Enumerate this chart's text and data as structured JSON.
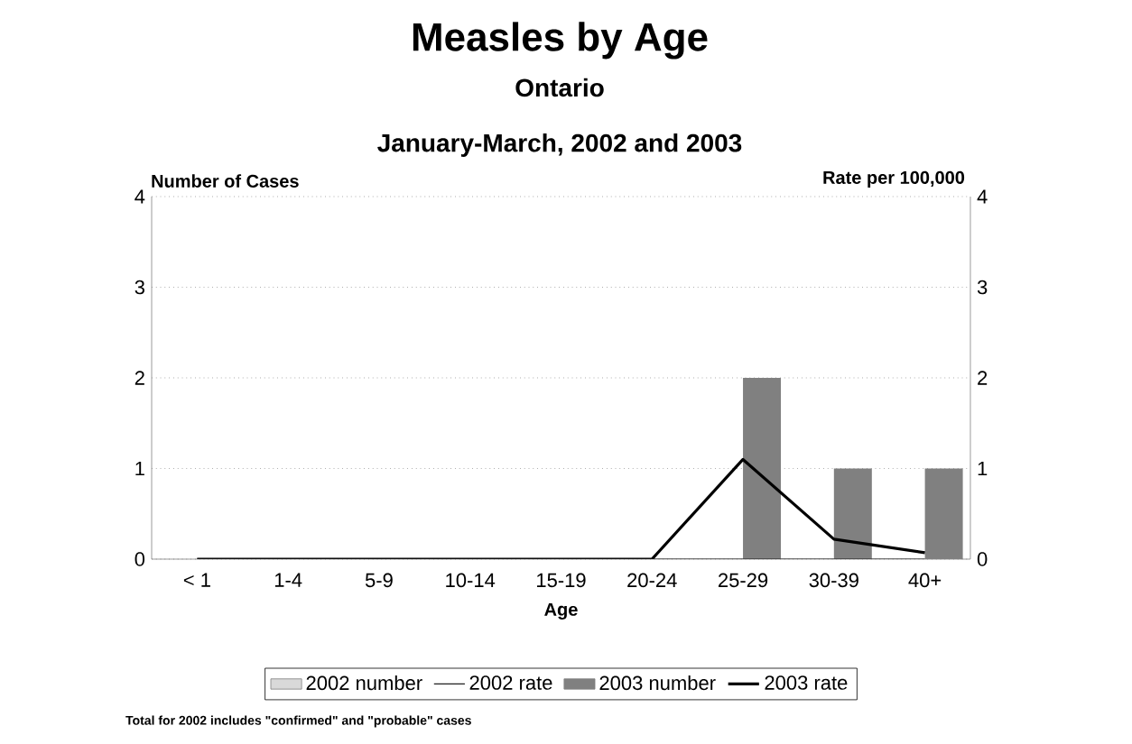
{
  "chart_data": {
    "type": "bar",
    "title": "Measles by Age",
    "subtitle": "Ontario",
    "annotations": [
      "January-March, 2002 and 2003",
      "Total for 2002 includes \"confirmed\" and \"probable\" cases"
    ],
    "xlabel": "Age",
    "ylabel": "Number of Cases",
    "y2label": "Rate per 100,000",
    "categories": [
      "< 1",
      "1-4",
      "5-9",
      "10-14",
      "15-19",
      "20-24",
      "25-29",
      "30-39",
      "40+"
    ],
    "series": [
      {
        "name": "2002 number",
        "color": "#d9d9d9",
        "values": [
          0,
          0,
          0,
          0,
          0,
          0,
          0,
          0,
          0
        ]
      },
      {
        "name": "2002 rate",
        "type": "line",
        "axis": "y2",
        "color": "#202020",
        "values": [
          0,
          0,
          0,
          0,
          0,
          0,
          0,
          0,
          0
        ]
      },
      {
        "name": "2003 number",
        "color": "#808080",
        "values": [
          0,
          0,
          0,
          0,
          0,
          0,
          2,
          1,
          1
        ]
      },
      {
        "name": "2003 rate",
        "type": "line",
        "axis": "y2",
        "color": "#000000",
        "values": [
          0,
          0,
          0,
          0,
          0,
          0,
          1.1,
          0.22,
          0.07
        ]
      }
    ],
    "ylim": [
      0,
      4
    ],
    "yticks": [
      0,
      1,
      2,
      3,
      4
    ],
    "y2lim": [
      0,
      4
    ],
    "y2ticks": [
      0,
      1,
      2,
      3,
      4
    ],
    "grid": "y",
    "legend": "bottom",
    "marker": "none",
    "line_style": "solid"
  }
}
